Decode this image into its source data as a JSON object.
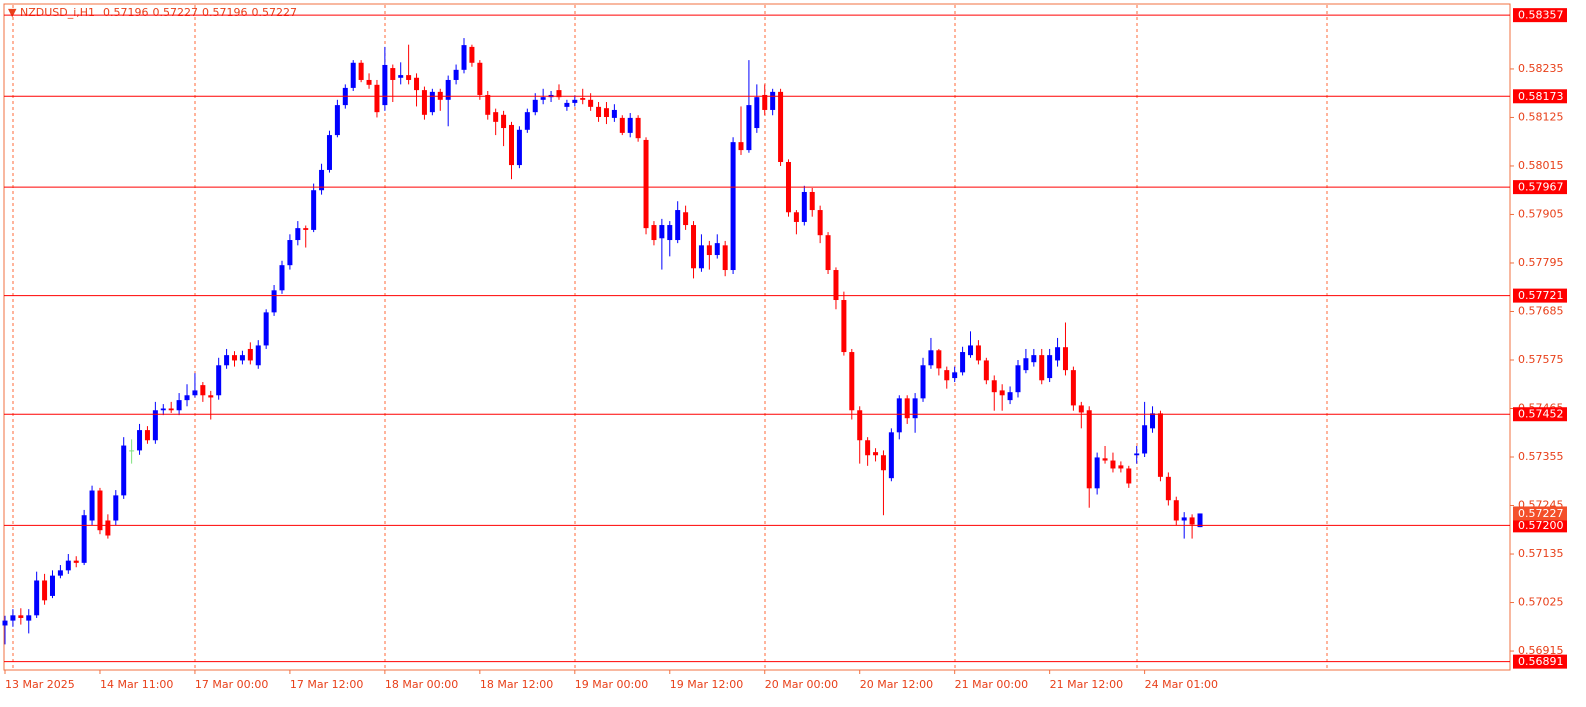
{
  "chart_data": {
    "type": "candlestick",
    "symbol": "NZDUSD_i,H1",
    "categories": [
      "13 Mar 2025",
      null,
      null,
      null,
      null,
      null,
      null,
      null,
      null,
      null,
      null,
      null,
      "14 Mar 11:00",
      null,
      null,
      null,
      null,
      null,
      null,
      null,
      null,
      null,
      null,
      null,
      "17 Mar 00:00",
      null,
      null,
      null,
      null,
      null,
      null,
      null,
      null,
      null,
      null,
      null,
      "17 Mar 12:00",
      null,
      null,
      null,
      null,
      null,
      null,
      null,
      null,
      null,
      null,
      null,
      "18 Mar 00:00",
      null,
      null,
      null,
      null,
      null,
      null,
      null,
      null,
      null,
      null,
      null,
      "18 Mar 12:00",
      null,
      null,
      null,
      null,
      null,
      null,
      null,
      null,
      null,
      null,
      null,
      "19 Mar 00:00",
      null,
      null,
      null,
      null,
      null,
      null,
      null,
      null,
      null,
      null,
      null,
      "19 Mar 12:00",
      null,
      null,
      null,
      null,
      null,
      null,
      null,
      null,
      null,
      null,
      null,
      "20 Mar 00:00",
      null,
      null,
      null,
      null,
      null,
      null,
      null,
      null,
      null,
      null,
      null,
      "20 Mar 12:00",
      null,
      null,
      null,
      null,
      null,
      null,
      null,
      null,
      null,
      null,
      null,
      "21 Mar 00:00",
      null,
      null,
      null,
      null,
      null,
      null,
      null,
      null,
      null,
      null,
      null,
      "21 Mar 12:00",
      null,
      null,
      null,
      null,
      null,
      null,
      null,
      null,
      null,
      null,
      null,
      "24 Mar 01:00",
      null,
      null,
      null,
      null,
      null,
      null,
      null
    ],
    "open": [
      0.56973,
      0.56984,
      0.56996,
      0.56984,
      0.56996,
      0.57075,
      0.5704,
      0.57086,
      0.57098,
      0.5712,
      0.57115,
      0.57211,
      0.57279,
      0.57211,
      0.57211,
      0.57268,
      0.5737,
      0.5737,
      0.57416,
      0.57393,
      0.57461,
      0.57465,
      0.57461,
      0.57484,
      0.57495,
      0.57518,
      0.57495,
      0.57495,
      0.57563,
      0.57586,
      0.57574,
      0.576,
      0.57563,
      0.57608,
      0.57683,
      0.57733,
      0.5779,
      0.57847,
      0.57874,
      0.5787,
      0.5796,
      0.58006,
      0.58085,
      0.58153,
      0.58192,
      0.58249,
      0.5821,
      0.58199,
      0.58153,
      0.58237,
      0.58215,
      0.58221,
      0.58215,
      0.58187,
      0.58137,
      0.58183,
      0.58165,
      0.5821,
      0.58233,
      0.58285,
      0.58249,
      0.58176,
      0.58137,
      0.58131,
      0.58108,
      0.58017,
      0.58097,
      0.58137,
      0.58165,
      0.58171,
      0.58187,
      0.58149,
      0.58158,
      0.58169,
      0.58165,
      0.58149,
      0.58146,
      0.58124,
      0.58124,
      0.5809,
      0.58124,
      0.58074,
      0.57881,
      0.57851,
      0.57847,
      0.57847,
      0.5791,
      0.57881,
      0.57783,
      0.57835,
      0.57813,
      0.57835,
      0.57779,
      0.58069,
      0.58051,
      0.58101,
      0.58176,
      0.58142,
      0.58183,
      0.58024,
      0.5791,
      0.57888,
      0.57956,
      0.57915,
      0.57858,
      0.57779,
      0.57711,
      0.57593,
      0.57461,
      0.57393,
      0.57366,
      0.57359,
      0.57307,
      0.57411,
      0.57488,
      0.57443,
      0.57488,
      0.57563,
      0.57597,
      0.57552,
      0.57534,
      0.57547,
      0.57586,
      0.57608,
      0.57574,
      0.57529,
      0.57506,
      0.57484,
      0.57502,
      0.57552,
      0.5757,
      0.57586,
      0.57534,
      0.57574,
      0.57604,
      0.57552,
      0.57472,
      0.57461,
      0.57284,
      0.57352,
      0.57347,
      0.57336,
      0.57329,
      0.57359,
      0.57363,
      0.5742,
      0.57454,
      0.5731,
      0.57257,
      0.57211,
      0.57218,
      0.57196
    ],
    "high": [
      0.56995,
      0.5701,
      0.57012,
      0.5701,
      0.57095,
      0.5709,
      0.57098,
      0.5711,
      0.57135,
      0.5713,
      0.57235,
      0.5729,
      0.57285,
      0.57225,
      0.5728,
      0.574,
      0.57395,
      0.5743,
      0.57425,
      0.5748,
      0.57475,
      0.5748,
      0.575,
      0.5752,
      0.57545,
      0.57525,
      0.57505,
      0.5758,
      0.576,
      0.57595,
      0.57596,
      0.57615,
      0.5762,
      0.5769,
      0.57745,
      0.578,
      0.5786,
      0.5789,
      0.5788,
      0.57975,
      0.5802,
      0.58095,
      0.58165,
      0.582,
      0.58255,
      0.58255,
      0.58225,
      0.5821,
      0.58285,
      0.58245,
      0.5825,
      0.5829,
      0.58225,
      0.58195,
      0.5819,
      0.5819,
      0.5822,
      0.58245,
      0.58305,
      0.5829,
      0.58255,
      0.58185,
      0.58145,
      0.5814,
      0.58115,
      0.58105,
      0.58145,
      0.5818,
      0.5819,
      0.58185,
      0.582,
      0.58165,
      0.58175,
      0.5819,
      0.5818,
      0.5816,
      0.5816,
      0.58155,
      0.5813,
      0.58135,
      0.5813,
      0.5808,
      0.5789,
      0.57895,
      0.5789,
      0.57935,
      0.57925,
      0.5789,
      0.5786,
      0.57845,
      0.5786,
      0.57845,
      0.5808,
      0.5815,
      0.58255,
      0.582,
      0.582,
      0.5819,
      0.5819,
      0.5803,
      0.57915,
      0.5797,
      0.57965,
      0.57925,
      0.57865,
      0.57785,
      0.5773,
      0.576,
      0.5747,
      0.574,
      0.57375,
      0.5737,
      0.5742,
      0.57495,
      0.57495,
      0.575,
      0.5758,
      0.57625,
      0.576,
      0.5756,
      0.5756,
      0.57605,
      0.5764,
      0.5762,
      0.5758,
      0.5754,
      0.5752,
      0.57515,
      0.57575,
      0.576,
      0.576,
      0.576,
      0.576,
      0.57625,
      0.5766,
      0.5756,
      0.5748,
      0.5747,
      0.57365,
      0.5738,
      0.57365,
      0.57345,
      0.57335,
      0.5738,
      0.5748,
      0.5747,
      0.5746,
      0.5732,
      0.57265,
      0.5723,
      0.57225,
      0.57227
    ],
    "low": [
      0.5693,
      0.5697,
      0.56975,
      0.56955,
      0.5699,
      0.5702,
      0.57035,
      0.5708,
      0.5709,
      0.57105,
      0.5711,
      0.572,
      0.5718,
      0.5717,
      0.572,
      0.5726,
      0.5734,
      0.5736,
      0.57385,
      0.57385,
      0.5745,
      0.57455,
      0.5745,
      0.5747,
      0.5749,
      0.5748,
      0.5744,
      0.57485,
      0.57555,
      0.5756,
      0.57565,
      0.57565,
      0.57555,
      0.576,
      0.57675,
      0.57725,
      0.5778,
      0.57835,
      0.5783,
      0.57865,
      0.5795,
      0.58,
      0.5808,
      0.58145,
      0.58185,
      0.58205,
      0.5819,
      0.58125,
      0.5814,
      0.5816,
      0.582,
      0.582,
      0.5815,
      0.5812,
      0.5813,
      0.5814,
      0.58105,
      0.582,
      0.58225,
      0.5824,
      0.58165,
      0.5812,
      0.58085,
      0.5806,
      0.57985,
      0.5801,
      0.5809,
      0.5813,
      0.58155,
      0.5816,
      0.58165,
      0.5814,
      0.5815,
      0.58155,
      0.5814,
      0.58115,
      0.5811,
      0.58115,
      0.58085,
      0.5808,
      0.5807,
      0.5786,
      0.57835,
      0.5778,
      0.5781,
      0.5784,
      0.5787,
      0.5776,
      0.57775,
      0.5778,
      0.57805,
      0.57765,
      0.5777,
      0.5804,
      0.58045,
      0.5809,
      0.5813,
      0.5813,
      0.58015,
      0.579,
      0.5786,
      0.5788,
      0.579,
      0.5784,
      0.5777,
      0.5769,
      0.57585,
      0.5744,
      0.5734,
      0.57335,
      0.57345,
      0.57223,
      0.573,
      0.57395,
      0.5743,
      0.5741,
      0.5748,
      0.57555,
      0.5754,
      0.5751,
      0.57525,
      0.5754,
      0.5758,
      0.57565,
      0.5752,
      0.5746,
      0.5746,
      0.57475,
      0.5749,
      0.57545,
      0.5756,
      0.5752,
      0.57525,
      0.5756,
      0.5754,
      0.5746,
      0.5742,
      0.5724,
      0.5727,
      0.5734,
      0.5732,
      0.5732,
      0.57285,
      0.5734,
      0.57355,
      0.5741,
      0.573,
      0.57245,
      0.572,
      0.5717,
      0.5717,
      0.57196
    ],
    "close": [
      0.56984,
      0.56996,
      0.5699,
      0.56996,
      0.57075,
      0.5703,
      0.57086,
      0.57098,
      0.5712,
      0.57115,
      0.57223,
      0.57279,
      0.57189,
      0.57177,
      0.57268,
      0.57381,
      0.5737,
      0.57416,
      0.57393,
      0.57461,
      0.57465,
      0.57461,
      0.57484,
      0.57495,
      0.57506,
      0.57495,
      0.5749,
      0.57563,
      0.57586,
      0.57574,
      0.57586,
      0.57574,
      0.57608,
      0.57683,
      0.57733,
      0.5779,
      0.57847,
      0.57874,
      0.5787,
      0.5796,
      0.58006,
      0.58085,
      0.58153,
      0.58192,
      0.58249,
      0.5821,
      0.58199,
      0.58137,
      0.58244,
      0.5821,
      0.58221,
      0.5821,
      0.58187,
      0.58131,
      0.58183,
      0.58165,
      0.5821,
      0.58233,
      0.58289,
      0.58249,
      0.58176,
      0.58131,
      0.58115,
      0.58101,
      0.58017,
      0.58097,
      0.58137,
      0.58165,
      0.58171,
      0.58176,
      0.58171,
      0.58158,
      0.58165,
      0.58165,
      0.58149,
      0.58126,
      0.58126,
      0.58142,
      0.5809,
      0.58124,
      0.58078,
      0.57874,
      0.57847,
      0.57881,
      0.57881,
      0.57915,
      0.57881,
      0.57783,
      0.57835,
      0.57813,
      0.5784,
      0.57779,
      0.58069,
      0.58051,
      0.58153,
      0.58171,
      0.58142,
      0.58183,
      0.58024,
      0.5791,
      0.57888,
      0.57956,
      0.57915,
      0.57858,
      0.57779,
      0.57711,
      0.57593,
      0.57461,
      0.57393,
      0.57359,
      0.57359,
      0.57325,
      0.57411,
      0.57488,
      0.57443,
      0.57488,
      0.57563,
      0.57597,
      0.57556,
      0.57529,
      0.57547,
      0.57593,
      0.57608,
      0.57574,
      0.57529,
      0.57502,
      0.57495,
      0.57502,
      0.57563,
      0.57579,
      0.57586,
      0.57529,
      0.57586,
      0.57604,
      0.57552,
      0.57472,
      0.57456,
      0.57284,
      0.57354,
      0.57347,
      0.57329,
      0.57329,
      0.57295,
      0.57363,
      0.57427,
      0.57454,
      0.5731,
      0.57257,
      0.57211,
      0.57218,
      0.57202,
      0.57227
    ],
    "up_color": "#0000ff",
    "down_color": "#ff0000",
    "doji_color": "#7fe07f",
    "ylim": [
      0.56872,
      0.5838
    ],
    "yticks": [
      0.56915,
      0.57025,
      0.57135,
      0.57245,
      0.57355,
      0.57465,
      0.57575,
      0.57685,
      0.57795,
      0.57905,
      0.58015,
      0.58125,
      0.58235
    ],
    "levels": [
      0.58357,
      0.58173,
      0.57967,
      0.57721,
      0.57452,
      {
        "value": 0.572,
        "label": "0.57200"
      },
      0.56891
    ],
    "level_color": "#ff0000",
    "current_price": 0.57227,
    "current_price_color": "#f4502a"
  }
}
